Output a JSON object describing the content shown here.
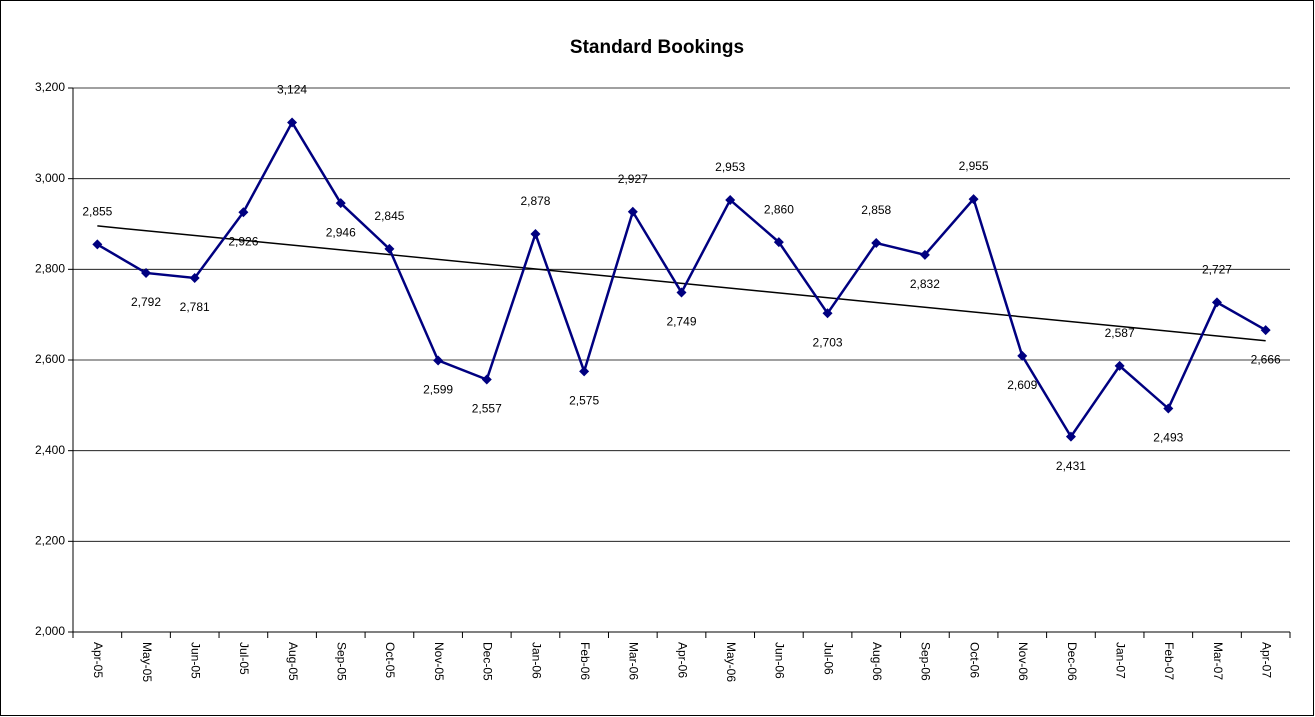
{
  "chart_data": {
    "type": "line",
    "title": "Standard Bookings",
    "categories": [
      "Apr-05",
      "May-05",
      "Jun-05",
      "Jul-05",
      "Aug-05",
      "Sep-05",
      "Oct-05",
      "Nov-05",
      "Dec-05",
      "Jan-06",
      "Feb-06",
      "Mar-06",
      "Apr-06",
      "May-06",
      "Jun-06",
      "Jul-06",
      "Aug-06",
      "Sep-06",
      "Oct-06",
      "Nov-06",
      "Dec-06",
      "Jan-07",
      "Feb-07",
      "Mar-07",
      "Apr-07"
    ],
    "series": [
      {
        "name": "Standard Bookings",
        "color": "#000080",
        "values": [
          2855,
          2792,
          2781,
          2926,
          3124,
          2946,
          2845,
          2599,
          2557,
          2878,
          2575,
          2927,
          2749,
          2953,
          2860,
          2703,
          2858,
          2832,
          2955,
          2609,
          2431,
          2587,
          2493,
          2727,
          2666
        ],
        "value_labels": [
          "2,855",
          "2,792",
          "2,781",
          "2,926",
          "3,124",
          "2,946",
          "2,845",
          "2,599",
          "2,557",
          "2,878",
          "2,575",
          "2,927",
          "2,749",
          "2,953",
          "2,860",
          "2,703",
          "2,858",
          "2,832",
          "2,955",
          "2,609",
          "2,431",
          "2,587",
          "2,493",
          "2,727",
          "2,666"
        ]
      }
    ],
    "trendline": "linear",
    "trendline_color": "#000000",
    "ylim": [
      2000,
      3200
    ],
    "yticks": [
      {
        "value": 2000,
        "label": "2,000"
      },
      {
        "value": 2200,
        "label": "2,200"
      },
      {
        "value": 2400,
        "label": "2,400"
      },
      {
        "value": 2600,
        "label": "2,600"
      },
      {
        "value": 2800,
        "label": "2,800"
      },
      {
        "value": 3000,
        "label": "3,000"
      },
      {
        "value": 3200,
        "label": "3,200"
      }
    ],
    "grid": true
  }
}
